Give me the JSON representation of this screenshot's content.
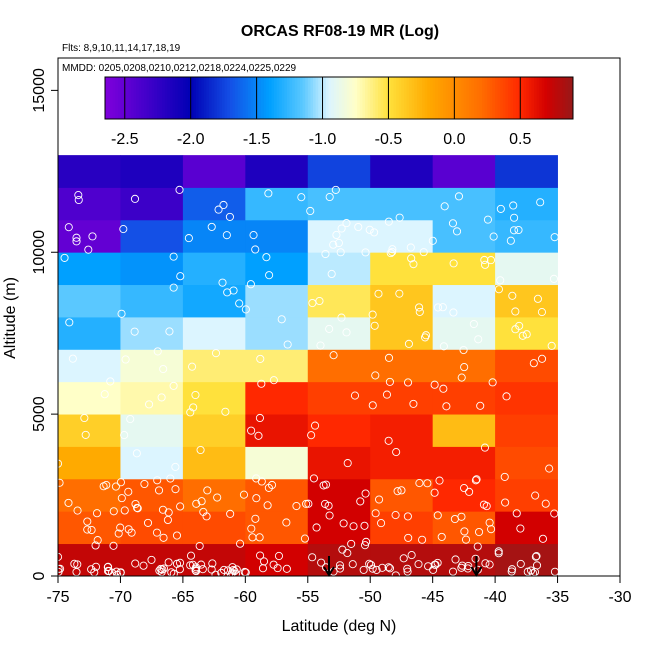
{
  "chart_data": {
    "type": "heatmap",
    "title": "ORCAS RF08-19 MR (Log)",
    "subtitle_flights": "Flts: 8,9,10,11,14,17,18,19",
    "subtitle_dates": "MMDD: 0205,0208,0210,0212,0218,0224,0225,0229",
    "xlabel": "Latitude (deg N)",
    "ylabel": "Altitude (m)",
    "xlim": [
      -75,
      -30
    ],
    "ylim": [
      0,
      16000
    ],
    "x_ticks": [
      -75,
      -70,
      -65,
      -60,
      -55,
      -50,
      -45,
      -40,
      -35,
      -30
    ],
    "x_tick_labels": [
      "-75",
      "-70",
      "-65",
      "-60",
      "-55",
      "-50",
      "-45",
      "-40",
      "-35",
      "-30"
    ],
    "y_ticks": [
      0,
      5000,
      10000,
      15000
    ],
    "y_tick_labels": [
      "0",
      "5000",
      "10000",
      "15000"
    ],
    "colorbar": {
      "range": [
        -2.65,
        0.9
      ],
      "ticks": [
        -2.5,
        -2.0,
        -1.5,
        -1.0,
        -0.5,
        0.0,
        0.5
      ],
      "tick_labels": [
        "-2.5",
        "-2.0",
        "-1.5",
        "-1.0",
        "-0.5",
        "0.0",
        "0.5"
      ]
    },
    "grid": {
      "x_edges": [
        -75,
        -70,
        -65,
        -60,
        -55,
        -50,
        -45,
        -40,
        -35
      ],
      "altitude_bin_m": 1000,
      "rows_from_bottom": [
        [
          0.75,
          0.75,
          0.75,
          0.7,
          0.8,
          0.8,
          0.8,
          0.85
        ],
        [
          0.3,
          0.35,
          0.35,
          0.3,
          0.7,
          0.4,
          0.3,
          0.7
        ],
        [
          0.2,
          0.3,
          0.2,
          0.3,
          0.7,
          0.3,
          0.5,
          0.4
        ],
        [
          -0.2,
          -0.95,
          -0.3,
          -0.8,
          0.6,
          0.55,
          0.55,
          0.35
        ],
        [
          -0.4,
          -0.9,
          -0.4,
          0.6,
          0.5,
          0.55,
          -0.3,
          0.4
        ],
        [
          -0.75,
          -0.7,
          -0.5,
          0.5,
          0.4,
          0.4,
          0.4,
          0.45
        ],
        [
          -0.95,
          -0.8,
          -0.6,
          -0.6,
          0.2,
          0.2,
          0.2,
          0.35
        ],
        [
          -1.3,
          -1.05,
          -0.95,
          -1.05,
          -0.9,
          -0.35,
          -0.9,
          -0.5
        ],
        [
          -1.15,
          -1.25,
          -1.35,
          -1.05,
          -0.55,
          -0.35,
          -0.95,
          -0.35
        ],
        [
          -1.4,
          -1.45,
          -1.3,
          -1.4,
          -1.0,
          -0.5,
          -0.5,
          -0.9
        ],
        [
          -2.5,
          -1.7,
          -1.5,
          -1.5,
          -0.95,
          -0.95,
          -1.2,
          -1.25
        ],
        [
          -2.4,
          -2.3,
          -1.65,
          -1.25,
          -1.2,
          -1.2,
          -1.2,
          -1.3
        ],
        [
          -2.2,
          -2.15,
          -2.45,
          -2.15,
          -1.75,
          -2.15,
          -2.45,
          -1.8
        ]
      ]
    },
    "markers": [
      {
        "type": "down-arrow",
        "x": -53.3,
        "y": 0
      },
      {
        "type": "down-arrow",
        "x": -41.5,
        "y": 0
      }
    ]
  }
}
